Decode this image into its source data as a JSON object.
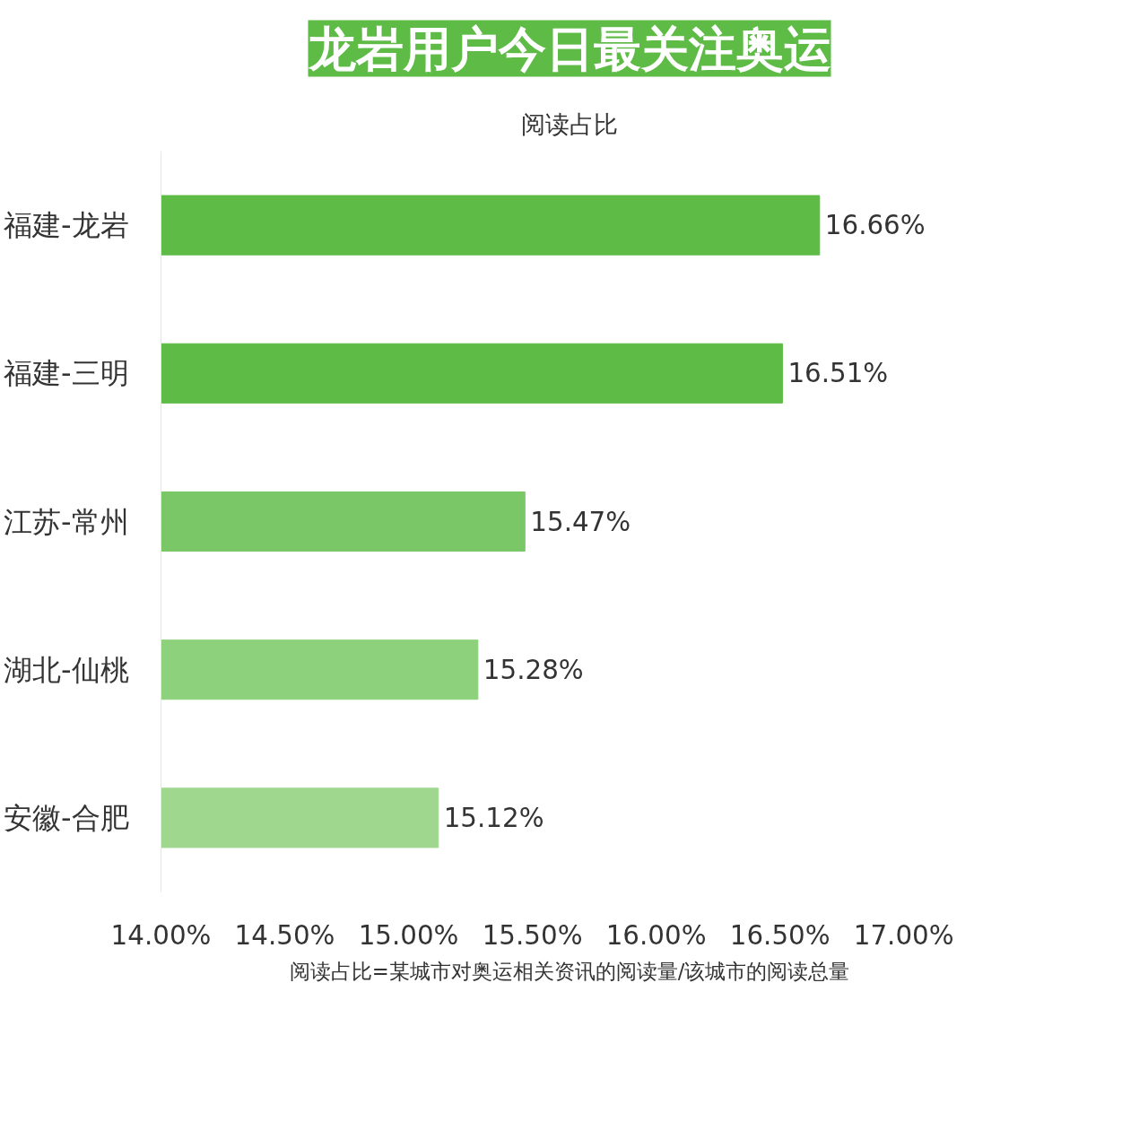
{
  "chart_data": {
    "type": "bar",
    "orientation": "horizontal",
    "title": "龙岩用户今日最关注奥运",
    "subtitle": "阅读占比",
    "categories": [
      "福建-龙岩",
      "福建-三明",
      "江苏-常州",
      "湖北-仙桃",
      "安徽-合肥"
    ],
    "values": [
      16.66,
      16.51,
      15.47,
      15.28,
      15.12
    ],
    "value_labels": [
      "16.66%",
      "16.51%",
      "15.47%",
      "15.28%",
      "15.12%"
    ],
    "colors": [
      "#5dbb46",
      "#5dbb46",
      "#7ac767",
      "#8ed17c",
      "#9fd78f"
    ],
    "xlim": [
      14,
      17
    ],
    "xticks": [
      {
        "value": 14,
        "label": "14.00%"
      },
      {
        "value": 14.5,
        "label": "14.50%"
      },
      {
        "value": 15,
        "label": "15.00%"
      },
      {
        "value": 15.5,
        "label": "15.50%"
      },
      {
        "value": 16,
        "label": "16.00%"
      },
      {
        "value": 16.5,
        "label": "16.50%"
      },
      {
        "value": 17,
        "label": "17.00%"
      }
    ],
    "grid": false,
    "annotations": [
      "阅读占比=某城市对奥运相关资讯的阅读量/该城市的阅读总量"
    ]
  }
}
